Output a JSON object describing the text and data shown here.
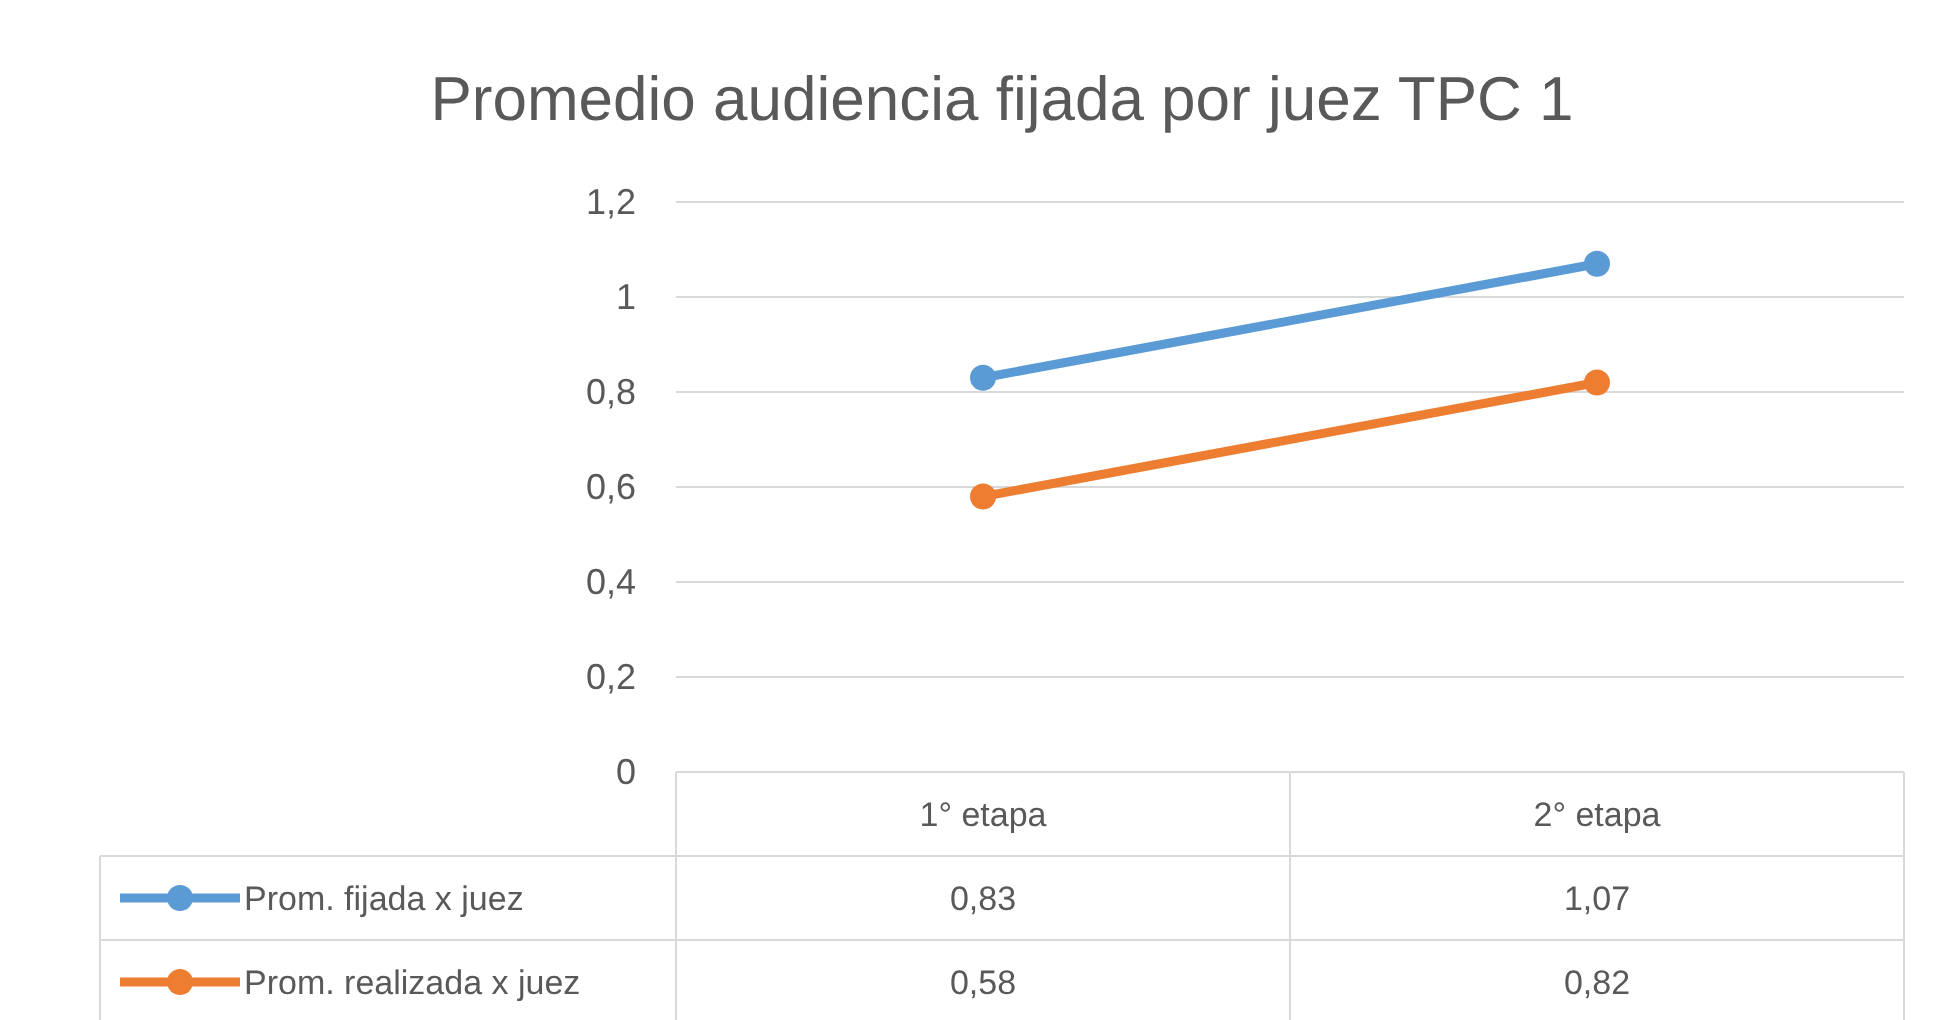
{
  "chart_data": {
    "type": "line",
    "title": "Promedio audiencia fijada por juez TPC 1",
    "categories": [
      "1° etapa",
      "2° etapa"
    ],
    "series": [
      {
        "name": "Prom. fijada x juez",
        "color": "#5b9bd5",
        "values": [
          0.83,
          1.07
        ],
        "value_labels": [
          "0,83",
          "1,07"
        ]
      },
      {
        "name": "Prom. realizada x juez",
        "color": "#ed7d31",
        "values": [
          0.58,
          0.82
        ],
        "value_labels": [
          "0,58",
          "0,82"
        ]
      }
    ],
    "ylim": [
      0,
      1.2
    ],
    "yticks": [
      0,
      {
        "value": 0.2,
        "label": "0,2"
      },
      {
        "value": 0.4,
        "label": "0,4"
      },
      {
        "value": 0.6,
        "label": "0,6"
      },
      {
        "value": 0.8,
        "label": "0,8"
      },
      1,
      {
        "value": 1.2,
        "label": "1,2"
      }
    ],
    "grid": "y",
    "legend": "bottom",
    "marker": "circle",
    "line_style": "solid"
  }
}
